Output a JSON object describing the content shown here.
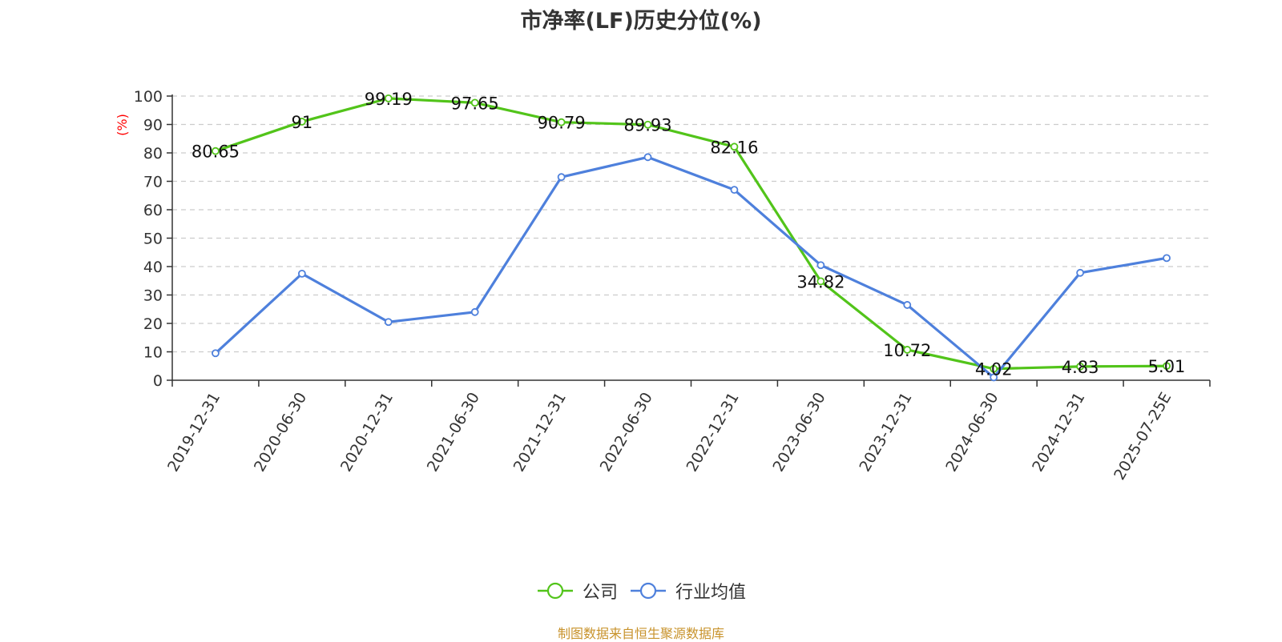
{
  "chart_data": {
    "type": "line",
    "title": "市净率(LF)历史分位(%)",
    "ylabel": "(%)",
    "xlabel": "",
    "ylim": [
      0,
      100
    ],
    "y_ticks": [
      0,
      10,
      20,
      30,
      40,
      50,
      60,
      70,
      80,
      90,
      100
    ],
    "grid": true,
    "legend_position": "bottom",
    "categories": [
      "2019-12-31",
      "2020-06-30",
      "2020-12-31",
      "2021-06-30",
      "2021-12-31",
      "2022-06-30",
      "2022-12-31",
      "2023-06-30",
      "2023-12-31",
      "2024-06-30",
      "2024-12-31",
      "2025-07-25E"
    ],
    "series": [
      {
        "name": "公司",
        "color": "#52c41a",
        "values": [
          80.65,
          91,
          99.19,
          97.65,
          90.79,
          89.93,
          82.16,
          34.82,
          10.72,
          4.02,
          4.83,
          5.01
        ],
        "labels": [
          "80.65",
          "91",
          "99.19",
          "97.65",
          "90.79",
          "89.93",
          "82.16",
          "34.82",
          "10.72",
          "4.02",
          "4.83",
          "5.01"
        ]
      },
      {
        "name": "行业均值",
        "color": "#4e80dc",
        "values": [
          9.5,
          37.5,
          20.5,
          24,
          71.5,
          78.5,
          67,
          40.5,
          26.5,
          1,
          37.8,
          43
        ]
      }
    ]
  },
  "source_note": "制图数据来自恒生聚源数据库",
  "colors": {
    "axis_label": "#ff0000",
    "title": "#333333",
    "source_note": "#c8932c"
  }
}
